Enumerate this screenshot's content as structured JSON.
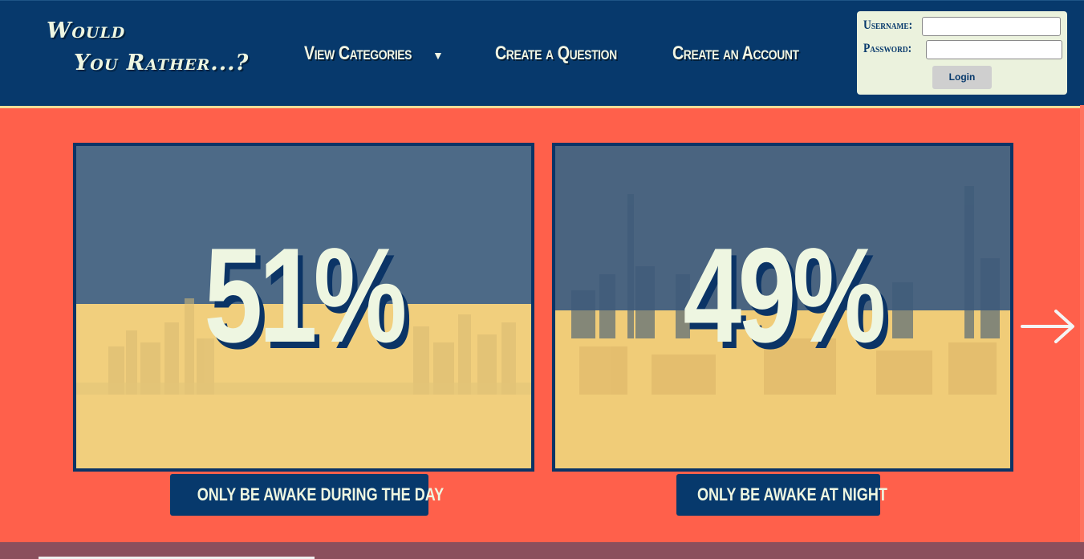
{
  "header": {
    "logo_line1": "Would",
    "logo_line2": "You Rather...?",
    "nav": {
      "categories": "View Categories",
      "create_question": "Create a Question",
      "create_account": "Create an Account"
    },
    "login": {
      "username_label": "Username:",
      "password_label": "Password:",
      "button": "Login",
      "username_value": "",
      "password_value": ""
    }
  },
  "options": [
    {
      "percent": "51%",
      "label": "ONLY BE AWAKE DURING THE DAY",
      "share": 0.51
    },
    {
      "percent": "49%",
      "label": "ONLY BE AWAKE AT NIGHT",
      "share": 0.49
    }
  ],
  "icons": {
    "dropdown": "caret-down-icon",
    "next": "arrow-right-icon"
  },
  "colors": {
    "background": "#ff604b",
    "header": "#07396c",
    "accent_text": "#eef6e1",
    "panel_blue": "#4d6a87",
    "panel_gold": "#f1cf7d"
  }
}
